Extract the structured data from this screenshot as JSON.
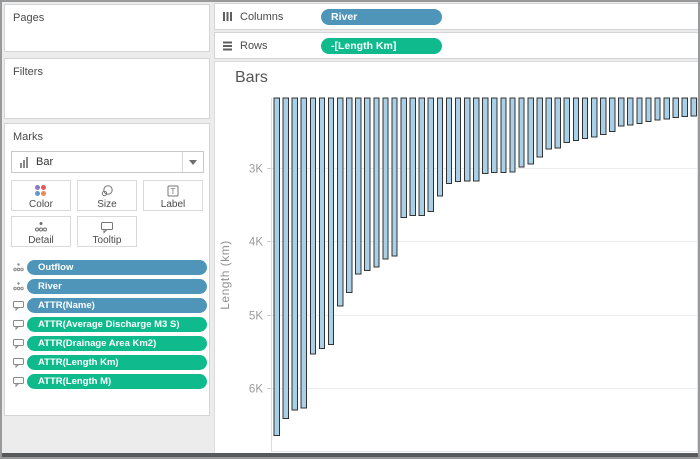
{
  "sidebar": {
    "pages": {
      "label": "Pages"
    },
    "filters": {
      "label": "Filters"
    },
    "marks": {
      "label": "Marks",
      "mark_type": "Bar",
      "buttons": [
        {
          "label": "Color",
          "icon": "color-dots-icon"
        },
        {
          "label": "Size",
          "icon": "size-icon"
        },
        {
          "label": "Label",
          "icon": "label-icon"
        },
        {
          "label": "Detail",
          "icon": "detail-icon"
        },
        {
          "label": "Tooltip",
          "icon": "tooltip-icon"
        }
      ],
      "pills": [
        {
          "label": "Outflow",
          "color": "blue",
          "icon": "detail-icon"
        },
        {
          "label": "River",
          "color": "blue",
          "icon": "detail-icon"
        },
        {
          "label": "ATTR(Name)",
          "color": "blue",
          "icon": "tooltip-icon"
        },
        {
          "label": "ATTR(Average Discharge M3 S)",
          "color": "green",
          "icon": "tooltip-icon"
        },
        {
          "label": "ATTR(Drainage Area Km2)",
          "color": "green",
          "icon": "tooltip-icon"
        },
        {
          "label": "ATTR(Length Km)",
          "color": "green",
          "icon": "tooltip-icon"
        },
        {
          "label": "ATTR(Length M)",
          "color": "green",
          "icon": "tooltip-icon"
        }
      ]
    }
  },
  "shelves": {
    "columns": {
      "label": "Columns",
      "pill": {
        "label": "River",
        "color": "blue"
      }
    },
    "rows": {
      "label": "Rows",
      "pill": {
        "label": "-[Length Km]",
        "color": "green"
      }
    }
  },
  "colors": {
    "pill_blue": "#4E95B9",
    "pill_green": "#0FBA8C",
    "bar_fill": "#A9D0E7",
    "bar_stroke": "#333333",
    "gridline": "#ebebeb",
    "axis_text": "#9b9b9b"
  },
  "chart_data": {
    "type": "bar",
    "title": "Bars",
    "x_field": "River",
    "y_field": "-[Length Km]",
    "ylabel": "Length (km)",
    "bars_hang_from_top": true,
    "grid": true,
    "legend": "none",
    "y_axis": {
      "tick_labels": [
        "3K",
        "4K",
        "5K",
        "6K"
      ],
      "tick_values": [
        3000,
        4000,
        5000,
        6000
      ],
      "range_min": 2045,
      "range_max": 6860,
      "increasing_downward": true
    },
    "values": [
      6650,
      6418,
      6300,
      6275,
      5539,
      5464,
      5410,
      4880,
      4700,
      4444,
      4400,
      4350,
      4241,
      4200,
      3672,
      3650,
      3645,
      3596,
      3380,
      3211,
      3185,
      3180,
      3180,
      3078,
      3060,
      3058,
      3057,
      2989,
      2948,
      2850,
      2740,
      2727,
      2650,
      2627,
      2600,
      2580,
      2540,
      2500,
      2428,
      2410,
      2390,
      2363,
      2348,
      2333,
      2310,
      2300,
      2292
    ]
  }
}
